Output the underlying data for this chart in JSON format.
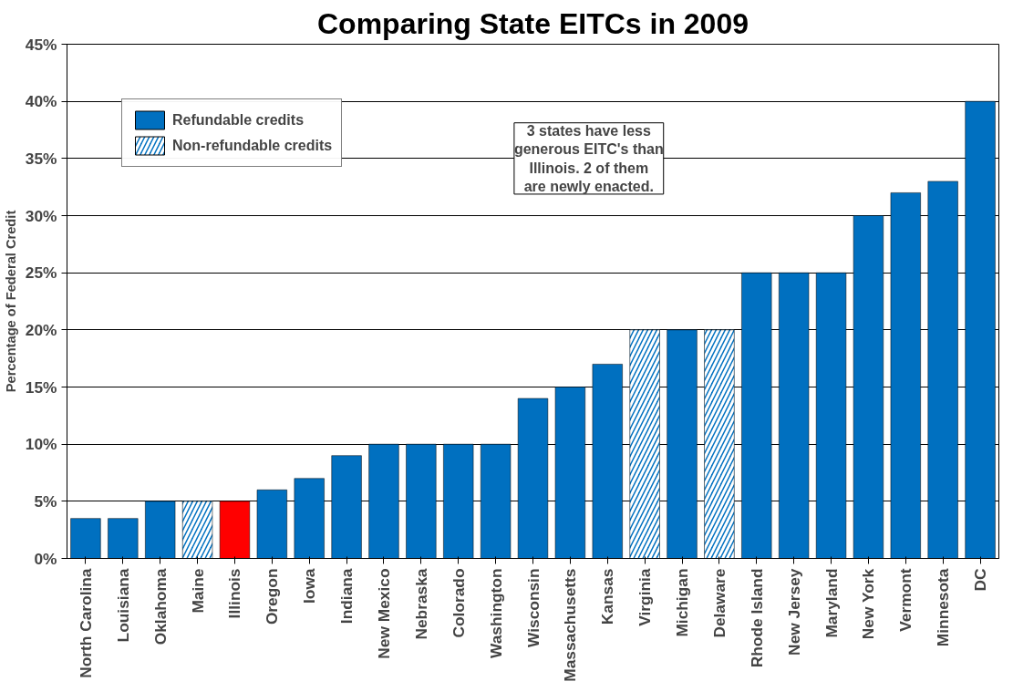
{
  "chart_data": {
    "type": "bar",
    "title": "Comparing State EITCs in 2009",
    "ylabel": "Percentage of Federal Credit",
    "categories": [
      "North Carolina",
      "Louisiana",
      "Oklahoma",
      "Maine",
      "Illinois",
      "Oregon",
      "Iowa",
      "Indiana",
      "New Mexico",
      "Nebraska",
      "Colorado",
      "Washington",
      "Wisconsin",
      "Massachusetts",
      "Kansas",
      "Virginia",
      "Michigan",
      "Delaware",
      "Rhode Island",
      "New Jersey",
      "Maryland",
      "New York",
      "Vermont",
      "Minnesota",
      "DC"
    ],
    "series": [
      {
        "name": "Refundable credits",
        "color": "#0070c0",
        "colors": [
          "#0070c0",
          "#0070c0",
          "#0070c0",
          "#0070c0",
          "#ff0000",
          "#0070c0",
          "#0070c0",
          "#0070c0",
          "#0070c0",
          "#0070c0",
          "#0070c0",
          "#0070c0",
          "#0070c0",
          "#0070c0",
          "#0070c0",
          "#0070c0",
          "#0070c0",
          "#0070c0",
          "#0070c0",
          "#0070c0",
          "#0070c0",
          "#0070c0",
          "#0070c0",
          "#0070c0",
          "#0070c0"
        ],
        "values": [
          3.5,
          3.5,
          5,
          null,
          5,
          6,
          7,
          9,
          10,
          10,
          10,
          10,
          14,
          15,
          17,
          null,
          20,
          null,
          25,
          25,
          25,
          30,
          32,
          33,
          40
        ]
      },
      {
        "name": "Non-refundable credits",
        "color": "#0070c0",
        "values": [
          null,
          null,
          null,
          5,
          null,
          null,
          null,
          null,
          null,
          null,
          null,
          null,
          null,
          null,
          null,
          20,
          null,
          20,
          null,
          null,
          null,
          null,
          null,
          null,
          null
        ]
      }
    ],
    "ylim": [
      0,
      45
    ],
    "yticks": [
      {
        "value": 0,
        "label": "0%"
      },
      {
        "value": 5,
        "label": "5%"
      },
      {
        "value": 10,
        "label": "10%"
      },
      {
        "value": 15,
        "label": "15%"
      },
      {
        "value": 20,
        "label": "20%"
      },
      {
        "value": 25,
        "label": "25%"
      },
      {
        "value": 30,
        "label": "30%"
      },
      {
        "value": 35,
        "label": "35%"
      },
      {
        "value": 40,
        "label": "40%"
      },
      {
        "value": 45,
        "label": "45%"
      }
    ],
    "grid": "y",
    "legend": "top left",
    "annotations": [
      "3 states have less generous EITC's than Illinois. 2 of them are newly enacted."
    ]
  }
}
